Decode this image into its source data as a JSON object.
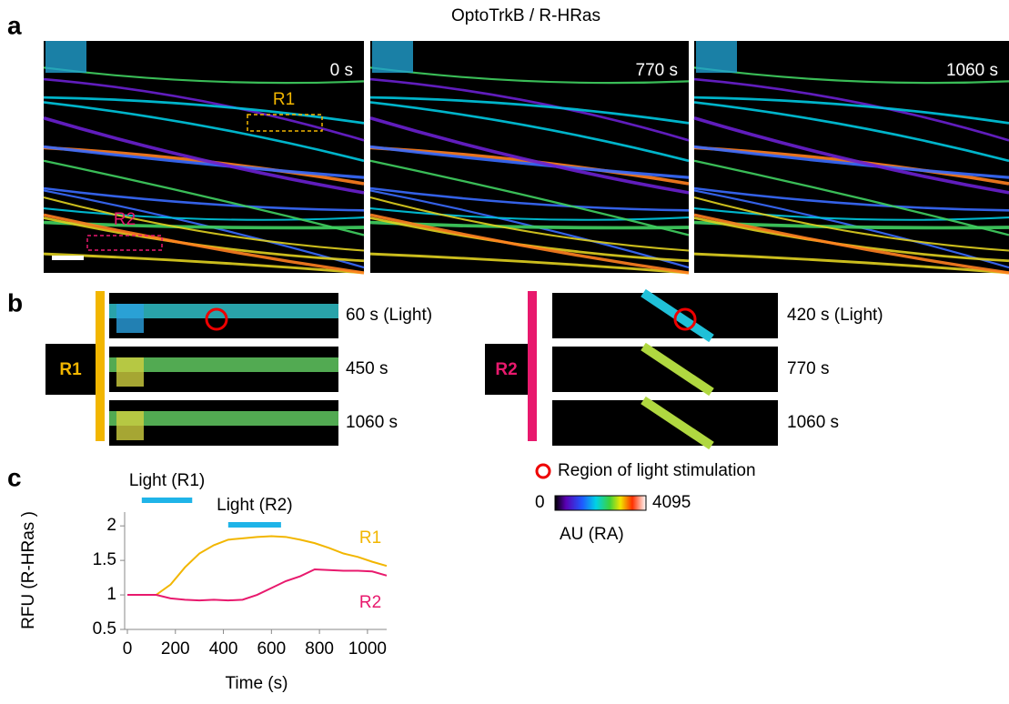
{
  "panel_a": {
    "label": "a",
    "title": "OptoTrkB / R-HRas",
    "frames": [
      "0 s",
      "770 s",
      "1060 s"
    ],
    "rois": [
      "R1",
      "R2"
    ]
  },
  "panel_b": {
    "label": "b",
    "groups": [
      {
        "name": "R1",
        "frames": [
          "60 s (Light)",
          "450 s",
          "1060 s"
        ]
      },
      {
        "name": "R2",
        "frames": [
          "420 s (Light)",
          "770 s",
          "1060 s"
        ]
      }
    ],
    "legend": "Region of light stimulation",
    "colorbar": {
      "min": 0,
      "max": 4095,
      "label": "AU (RA)"
    }
  },
  "panel_c": {
    "label": "c"
  },
  "chart_data": {
    "type": "line",
    "xlabel": "Time (s)",
    "ylabel": "RFU (R-HRas )",
    "x": [
      0,
      60,
      120,
      180,
      240,
      300,
      360,
      420,
      480,
      540,
      600,
      660,
      720,
      780,
      840,
      900,
      960,
      1020,
      1080
    ],
    "series": [
      {
        "name": "R1",
        "color": "#f2b600",
        "values": [
          1.0,
          1.0,
          1.0,
          1.15,
          1.4,
          1.6,
          1.72,
          1.8,
          1.82,
          1.84,
          1.85,
          1.84,
          1.8,
          1.75,
          1.68,
          1.6,
          1.55,
          1.48,
          1.42
        ]
      },
      {
        "name": "R2",
        "color": "#e8196d",
        "values": [
          1.0,
          1.0,
          1.0,
          0.95,
          0.93,
          0.92,
          0.93,
          0.92,
          0.93,
          1.0,
          1.1,
          1.2,
          1.27,
          1.37,
          1.36,
          1.35,
          1.35,
          1.34,
          1.28
        ]
      }
    ],
    "annotations": [
      {
        "label": "Light (R1)",
        "x": [
          60,
          270
        ]
      },
      {
        "label": "Light (R2)",
        "x": [
          420,
          640
        ]
      }
    ],
    "xlim": [
      0,
      1080
    ],
    "ylim": [
      0.5,
      2.2
    ],
    "xticks": [
      0,
      200,
      400,
      600,
      800,
      1000
    ],
    "yticks": [
      0.5,
      1,
      1.5,
      2
    ]
  }
}
